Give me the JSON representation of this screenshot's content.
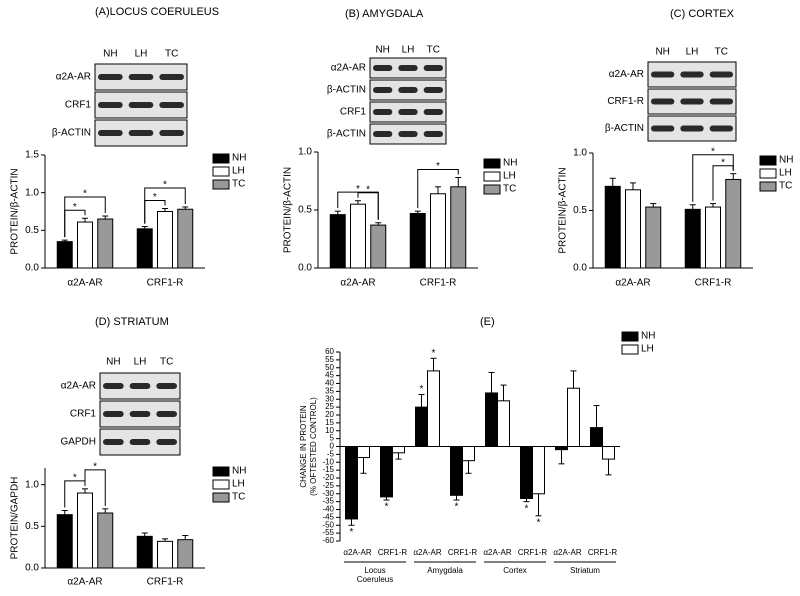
{
  "chart_data": [
    {
      "type": "bar",
      "title": "(A)LOCUS COERULEUS",
      "ylabel": "PROTEIN/β-ACTIN",
      "categories": [
        "α2A-AR",
        "CRF1-R"
      ],
      "series": [
        {
          "name": "NH",
          "color": "#000000",
          "values": [
            0.35,
            0.52
          ],
          "errors": [
            0.02,
            0.03
          ]
        },
        {
          "name": "LH",
          "color": "#ffffff",
          "values": [
            0.61,
            0.75
          ],
          "errors": [
            0.05,
            0.04
          ]
        },
        {
          "name": "TC",
          "color": "#999999",
          "values": [
            0.65,
            0.78
          ],
          "errors": [
            0.04,
            0.03
          ]
        }
      ],
      "ylim": [
        0,
        1.5
      ],
      "yticks": [
        {
          "value": 0,
          "label": "0.0"
        },
        0.5,
        {
          "value": 1,
          "label": "1.0"
        },
        1.5
      ],
      "legend": "upper right",
      "annotations": [
        {
          "category": 0,
          "series": [
            0,
            1
          ],
          "label": "*"
        },
        {
          "category": 0,
          "series": [
            0,
            2
          ],
          "label": "*"
        },
        {
          "category": 1,
          "series": [
            0,
            1
          ],
          "label": "*"
        },
        {
          "category": 1,
          "series": [
            0,
            2
          ],
          "label": "*"
        }
      ],
      "blot": {
        "lanes": [
          "NH",
          "LH",
          "TC"
        ],
        "rows": [
          "α2A-AR",
          "CRF1",
          "β-ACTIN"
        ]
      }
    },
    {
      "type": "bar",
      "title": "(B) AMYGDALA",
      "ylabel": "PROTEIN/β-ACTIN",
      "categories": [
        "α2A-AR",
        "CRF1-R"
      ],
      "series": [
        {
          "name": "NH",
          "color": "#000000",
          "values": [
            0.46,
            0.47
          ],
          "errors": [
            0.03,
            0.02
          ]
        },
        {
          "name": "LH",
          "color": "#ffffff",
          "values": [
            0.55,
            0.64
          ],
          "errors": [
            0.03,
            0.06
          ]
        },
        {
          "name": "TC",
          "color": "#999999",
          "values": [
            0.37,
            0.7
          ],
          "errors": [
            0.02,
            0.08
          ]
        }
      ],
      "ylim": [
        0,
        1
      ],
      "yticks": [
        {
          "value": 0,
          "label": "0.0"
        },
        0.5,
        {
          "value": 1,
          "label": "1.0"
        }
      ],
      "legend": "upper right",
      "annotations": [
        {
          "category": 0,
          "series": [
            1,
            2
          ],
          "label": "*"
        },
        {
          "category": 0,
          "series": [
            0,
            2
          ],
          "label": "*"
        },
        {
          "category": 1,
          "series": [
            0,
            2
          ],
          "label": "*"
        }
      ],
      "blot": {
        "lanes": [
          "NH",
          "LH",
          "TC"
        ],
        "rows": [
          "α2A-AR",
          "β-ACTIN",
          "CRF1",
          "β-ACTIN"
        ]
      }
    },
    {
      "type": "bar",
      "title": "(C) CORTEX",
      "ylabel": "PROTEIN/β-ACTIN",
      "categories": [
        "α2A-AR",
        "CRF1-R"
      ],
      "series": [
        {
          "name": "NH",
          "color": "#000000",
          "values": [
            0.71,
            0.51
          ],
          "errors": [
            0.07,
            0.04
          ]
        },
        {
          "name": "LH",
          "color": "#ffffff",
          "values": [
            0.68,
            0.53
          ],
          "errors": [
            0.06,
            0.03
          ]
        },
        {
          "name": "TC",
          "color": "#999999",
          "values": [
            0.53,
            0.77
          ],
          "errors": [
            0.03,
            0.05
          ]
        }
      ],
      "ylim": [
        0,
        1
      ],
      "yticks": [
        {
          "value": 0,
          "label": "0.0"
        },
        0.5,
        {
          "value": 1,
          "label": "1.0"
        }
      ],
      "legend": "upper right",
      "annotations": [
        {
          "category": 1,
          "series": [
            1,
            2
          ],
          "label": "*"
        },
        {
          "category": 1,
          "series": [
            0,
            2
          ],
          "label": "*"
        }
      ],
      "blot": {
        "lanes": [
          "NH",
          "LH",
          "TC"
        ],
        "rows": [
          "α2A-AR",
          "CRF1-R",
          "β-ACTIN"
        ]
      }
    },
    {
      "type": "bar",
      "title": "(D) STRIATUM",
      "ylabel": "PROTEIN/GAPDH",
      "categories": [
        "α2A-AR",
        "CRF1-R"
      ],
      "series": [
        {
          "name": "NH",
          "color": "#000000",
          "values": [
            0.64,
            0.38
          ],
          "errors": [
            0.05,
            0.04
          ]
        },
        {
          "name": "LH",
          "color": "#ffffff",
          "values": [
            0.9,
            0.32
          ],
          "errors": [
            0.05,
            0.03
          ]
        },
        {
          "name": "TC",
          "color": "#999999",
          "values": [
            0.66,
            0.34
          ],
          "errors": [
            0.05,
            0.05
          ]
        }
      ],
      "ylim": [
        0,
        1.2
      ],
      "yticks": [
        {
          "value": 0,
          "label": "0.0"
        },
        0.5,
        {
          "value": 1,
          "label": "1.0"
        }
      ],
      "legend": "upper right",
      "annotations": [
        {
          "category": 0,
          "series": [
            0,
            1
          ],
          "label": "*"
        },
        {
          "category": 0,
          "series": [
            1,
            2
          ],
          "label": "*"
        }
      ],
      "blot": {
        "lanes": [
          "NH",
          "LH",
          "TC"
        ],
        "rows": [
          "α2A-AR",
          "CRF1",
          "GAPDH"
        ]
      }
    },
    {
      "type": "bar",
      "title": "(E)",
      "ylabel": [
        "CHANGE  IN PROTEIN",
        "(% OFTESTED CONTROL)"
      ],
      "categories": [
        "α2A-AR",
        "CRF1-R",
        "α2A-AR",
        "CRF1-R",
        "α2A-AR",
        "CRF1-R",
        "α2A-AR",
        "CRF1-R"
      ],
      "groups": [
        {
          "lines": [
            "Locus",
            "Coeruleus"
          ]
        },
        {
          "lines": [
            "Amygdala"
          ]
        },
        {
          "lines": [
            "Cortex"
          ]
        },
        {
          "lines": [
            "Striatum"
          ]
        }
      ],
      "series": [
        {
          "name": "NH",
          "color": "#000000",
          "values": [
            -46,
            -32,
            25,
            -31,
            34,
            -33,
            -2,
            12
          ],
          "errors": [
            4,
            2,
            8,
            3,
            13,
            2,
            9,
            14
          ]
        },
        {
          "name": "LH",
          "color": "#ffffff",
          "values": [
            -7,
            -4,
            48,
            -9,
            29,
            -30,
            37,
            -8
          ],
          "errors": [
            10,
            4,
            8,
            8,
            10,
            14,
            11,
            10
          ]
        }
      ],
      "ylim": [
        -60,
        60
      ],
      "yticks": [
        -60,
        -55,
        -50,
        -45,
        -40,
        -35,
        -30,
        -25,
        -20,
        -15,
        -10,
        -5,
        0,
        5,
        10,
        15,
        20,
        25,
        30,
        35,
        40,
        45,
        50,
        55,
        60
      ],
      "legend": "upper right",
      "annotations": [
        {
          "series": 0,
          "index": 0,
          "label": "*"
        },
        {
          "series": 0,
          "index": 1,
          "label": "*"
        },
        {
          "series": 0,
          "index": 2,
          "label": "*"
        },
        {
          "series": 1,
          "index": 2,
          "label": "*"
        },
        {
          "series": 0,
          "index": 3,
          "label": "*"
        },
        {
          "series": 0,
          "index": 5,
          "label": "*"
        },
        {
          "series": 1,
          "index": 5,
          "label": "*"
        }
      ]
    }
  ]
}
